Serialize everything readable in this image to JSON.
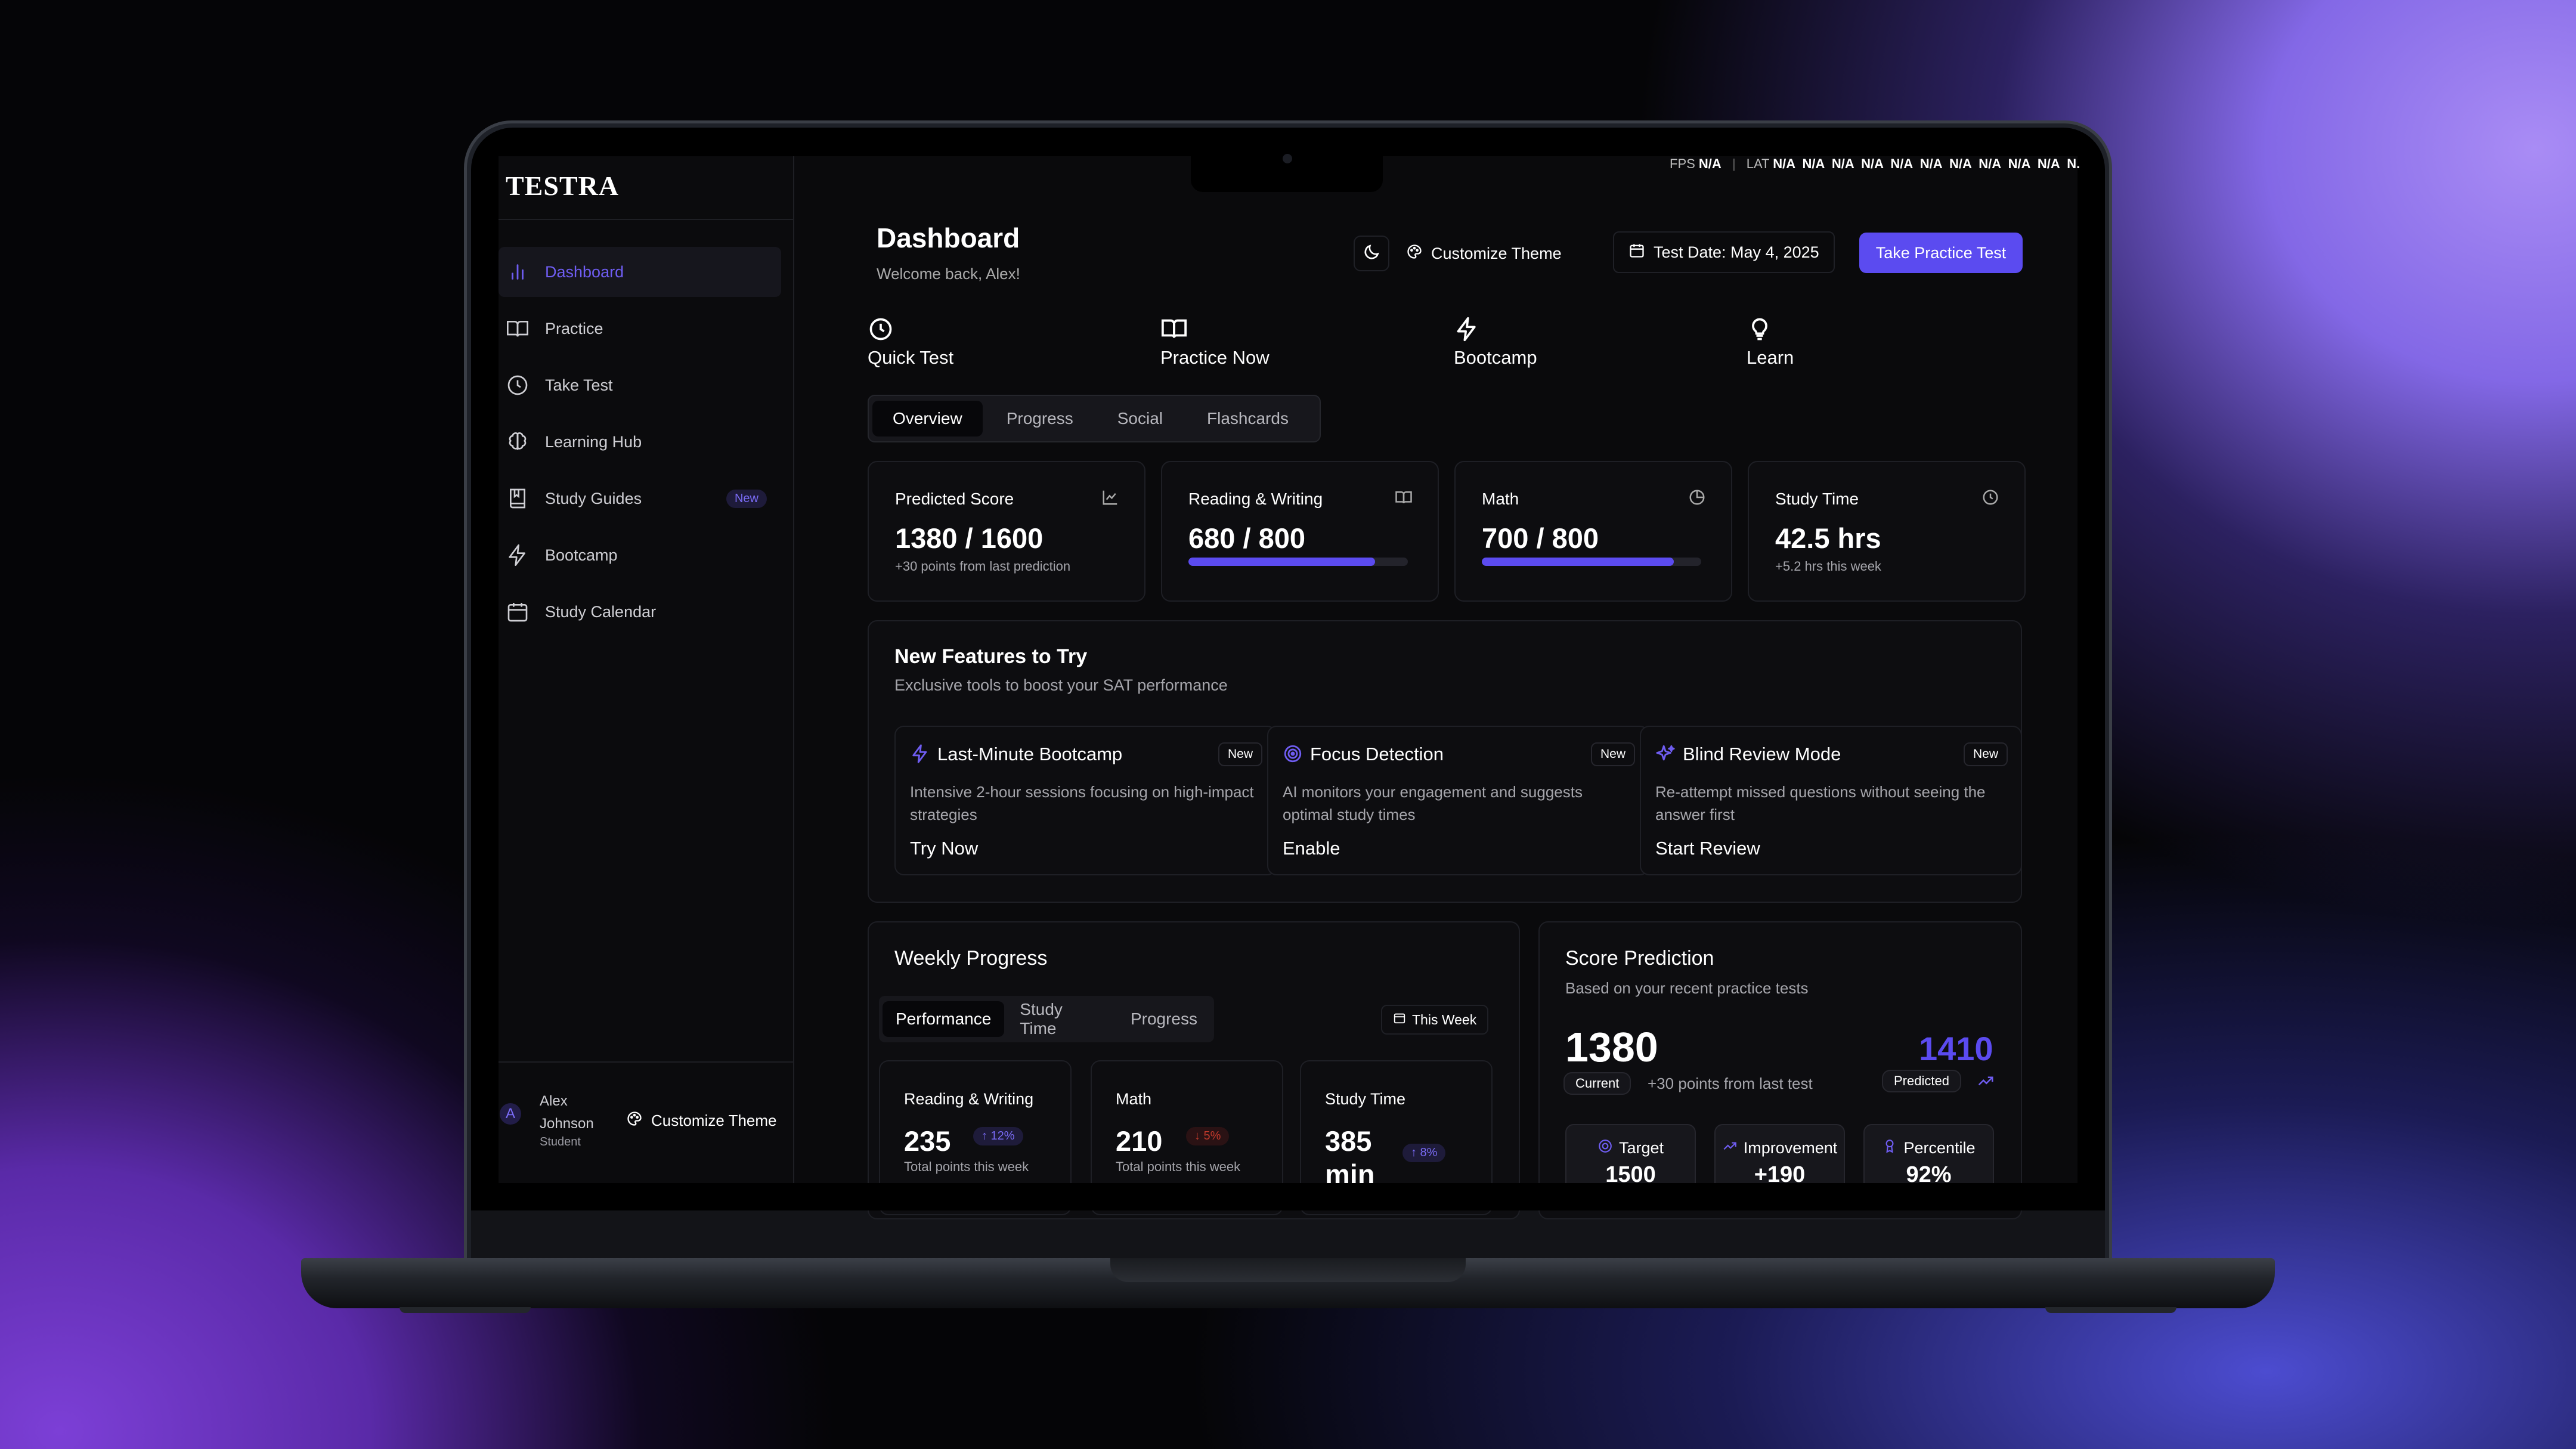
{
  "perf": {
    "fps_label": "FPS",
    "fps_value": "N/A",
    "lat_label": "LAT",
    "lat_values": "N/A  N/A  N/A  N/A  N/A  N/A  N/A  N/A  N/A  N/A  N."
  },
  "brand": {
    "logo": "TESTRA"
  },
  "sidebar": {
    "items": [
      {
        "label": "Dashboard",
        "icon": "bar-chart-icon"
      },
      {
        "label": "Practice",
        "icon": "book-icon"
      },
      {
        "label": "Take Test",
        "icon": "clock-icon"
      },
      {
        "label": "Learning Hub",
        "icon": "brain-icon"
      },
      {
        "label": "Study Guides",
        "icon": "guide-icon",
        "badge": "New"
      },
      {
        "label": "Bootcamp",
        "icon": "lightning-icon"
      },
      {
        "label": "Study Calendar",
        "icon": "calendar-icon"
      }
    ],
    "user": {
      "initial": "A",
      "name": "Alex Johnson",
      "role": "Student"
    },
    "theme_label": "Customize Theme"
  },
  "header": {
    "title": "Dashboard",
    "welcome": "Welcome back, Alex!",
    "theme_label": "Customize Theme",
    "test_date": "Test Date: May 4, 2025",
    "cta": "Take Practice Test"
  },
  "quick_actions": [
    {
      "label": "Quick Test",
      "icon": "clock-icon"
    },
    {
      "label": "Practice Now",
      "icon": "book-icon"
    },
    {
      "label": "Bootcamp",
      "icon": "lightning-icon"
    },
    {
      "label": "Learn",
      "icon": "lightbulb-icon"
    }
  ],
  "tabs": [
    "Overview",
    "Progress",
    "Social",
    "Flashcards"
  ],
  "stats": [
    {
      "label": "Predicted Score",
      "value": "1380 / 1600",
      "sub": "+30 points from last prediction",
      "icon": "line-chart-icon"
    },
    {
      "label": "Reading & Writing",
      "value": "680 / 800",
      "progress": 0.85,
      "icon": "book-icon"
    },
    {
      "label": "Math",
      "value": "700 / 800",
      "progress": 0.875,
      "icon": "pie-chart-icon"
    },
    {
      "label": "Study Time",
      "value": "42.5 hrs",
      "sub": "+5.2 hrs this week",
      "icon": "clock-icon"
    }
  ],
  "new_features": {
    "title": "New Features to Try",
    "subtitle": "Exclusive tools to boost your SAT performance",
    "items": [
      {
        "title": "Last-Minute Bootcamp",
        "badge": "New",
        "desc": "Intensive 2-hour sessions focusing on high-impact strategies",
        "cta": "Try Now",
        "icon": "lightning-icon"
      },
      {
        "title": "Focus Detection",
        "badge": "New",
        "desc": "AI monitors your engagement and suggests optimal study times",
        "cta": "Enable",
        "icon": "target-icon"
      },
      {
        "title": "Blind Review Mode",
        "badge": "New",
        "desc": "Re-attempt missed questions without seeing the answer first",
        "cta": "Start Review",
        "icon": "sparkle-icon"
      }
    ]
  },
  "weekly": {
    "title": "Weekly Progress",
    "tabs": [
      "Performance",
      "Study Time",
      "Progress"
    ],
    "period": "This Week",
    "cards": [
      {
        "label": "Reading & Writing",
        "value": "235",
        "delta": "↑ 12%",
        "sub": "Total points this week",
        "trend": "up"
      },
      {
        "label": "Math",
        "value": "210",
        "delta": "↓ 5%",
        "sub": "Total points this week",
        "trend": "down"
      },
      {
        "label": "Study Time",
        "value": "385 min",
        "delta": "↑ 8%",
        "trend": "up"
      }
    ]
  },
  "prediction": {
    "title": "Score Prediction",
    "subtitle": "Based on your recent practice tests",
    "current": "1380",
    "current_label": "Current",
    "points": "+30 points from last test",
    "predicted": "1410",
    "predicted_label": "Predicted",
    "metrics": [
      {
        "label": "Target",
        "value": "1500",
        "icon": "target-icon"
      },
      {
        "label": "Improvement",
        "value": "+190",
        "icon": "trend-up-icon"
      },
      {
        "label": "Percentile",
        "value": "92%",
        "icon": "award-icon"
      }
    ]
  },
  "colors": {
    "accent": "#5b4bf0",
    "background": "#0a0a0c",
    "card": "#0d0d10",
    "up": "#7a6cf6",
    "down": "#c0392b"
  }
}
